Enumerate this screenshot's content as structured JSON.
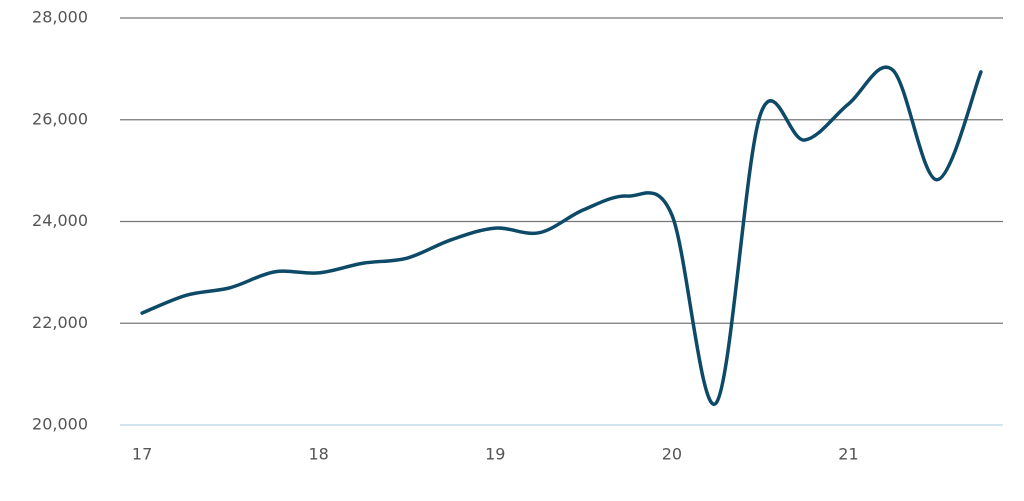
{
  "chart_data": {
    "type": "line",
    "x": [
      17,
      17.25,
      17.5,
      17.75,
      18,
      18.25,
      18.5,
      18.75,
      19,
      19.25,
      19.5,
      19.75,
      20,
      20.25,
      20.5,
      20.75,
      21,
      21.25,
      21.5,
      21.75
    ],
    "series": [
      {
        "color": "#0d4a68",
        "values": [
          22200,
          22550,
          22700,
          23010,
          22990,
          23180,
          23280,
          23640,
          23870,
          23780,
          24230,
          24500,
          24130,
          20430,
          26090,
          25600,
          26310,
          26980,
          24820,
          26940
        ]
      }
    ],
    "xlim": [
      16.875,
      21.875
    ],
    "xticks": [
      17,
      18,
      19,
      20,
      21
    ],
    "ylim": [
      20000,
      28000
    ],
    "yticks": [
      {
        "value": 20000,
        "label": "20,000"
      },
      {
        "value": 22000,
        "label": "22,000"
      },
      {
        "value": 24000,
        "label": "24,000"
      },
      {
        "value": 26000,
        "label": "26,000"
      },
      {
        "value": 28000,
        "label": "28,000"
      }
    ],
    "grid": true
  }
}
